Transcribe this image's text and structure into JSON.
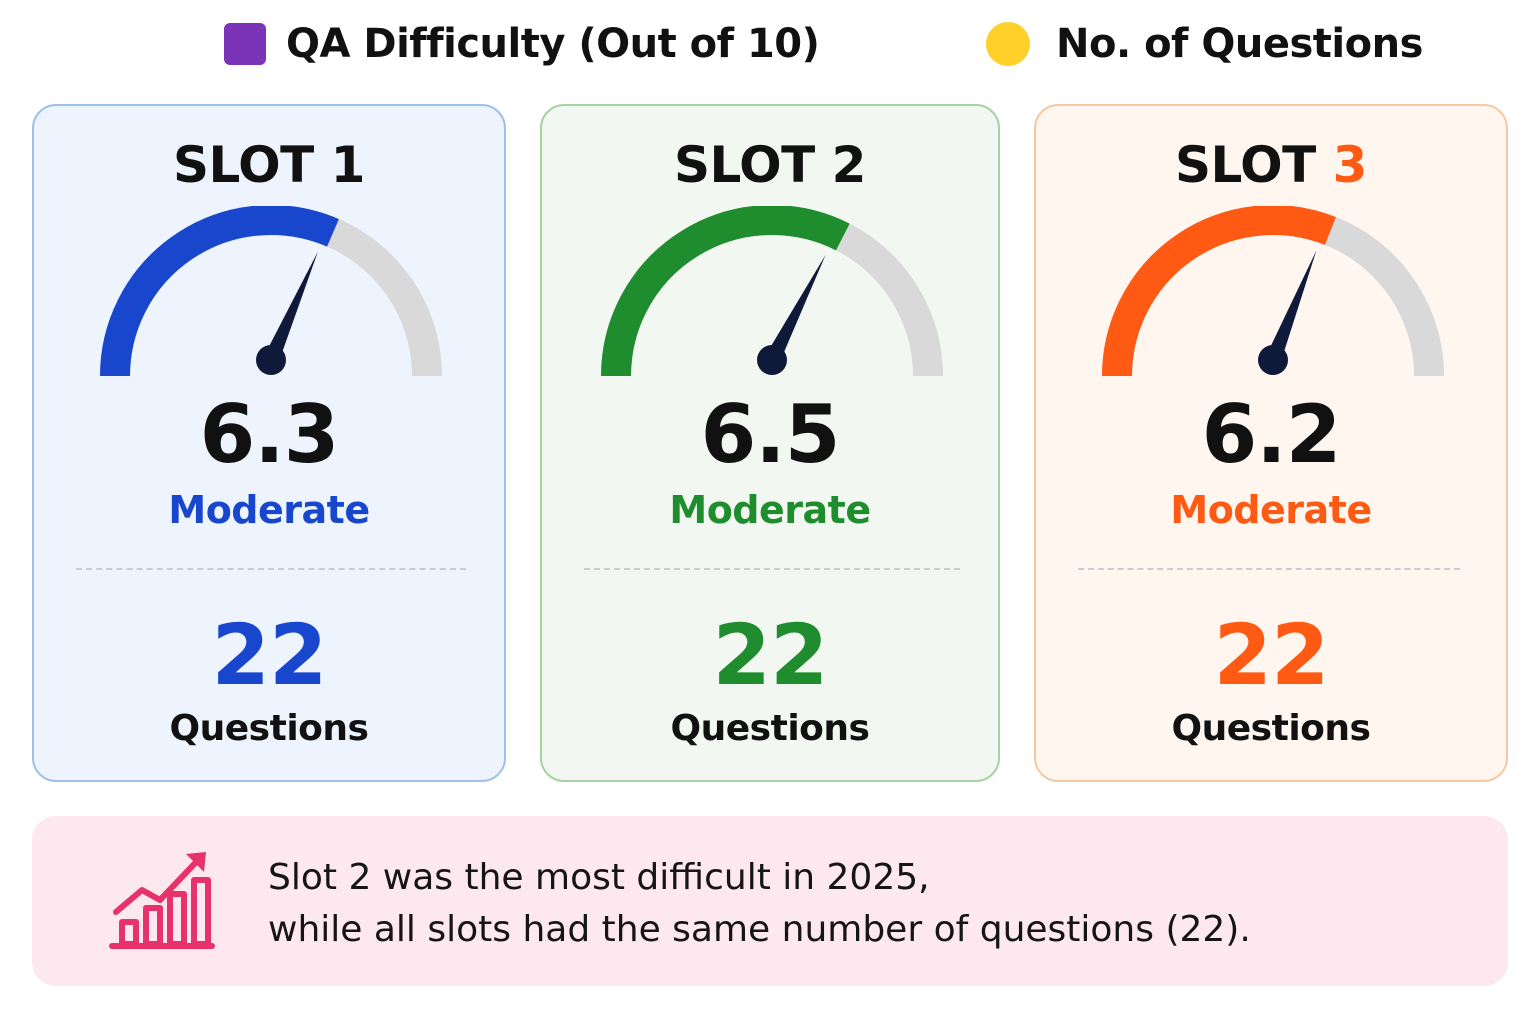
{
  "legend": [
    {
      "label": "QA Difficulty (Out of 10)",
      "color": "#7b34b8",
      "marker": "square"
    },
    {
      "label": "No. of Questions",
      "color": "#ffd02a",
      "marker": "circle"
    }
  ],
  "chart_data": {
    "type": "gauge",
    "scale": [
      0,
      10
    ],
    "series": [
      {
        "slot_label": "SLOT",
        "slot_number": "1",
        "difficulty": 6.3,
        "difficulty_text": "6.3",
        "level": "Moderate",
        "questions": 22,
        "questions_text": "22",
        "questions_label": "Questions",
        "color": "#1846cc",
        "background": "#eef4fd",
        "border": "#9ec0ea",
        "number_color": "#111111"
      },
      {
        "slot_label": "SLOT",
        "slot_number": "2",
        "difficulty": 6.5,
        "difficulty_text": "6.5",
        "level": "Moderate",
        "questions": 22,
        "questions_text": "22",
        "questions_label": "Questions",
        "color": "#1f8c2d",
        "background": "#f2f8f1",
        "border": "#a6d3a2",
        "number_color": "#111111"
      },
      {
        "slot_label": "SLOT",
        "slot_number": "3",
        "difficulty": 6.2,
        "difficulty_text": "6.2",
        "level": "Moderate",
        "questions": 22,
        "questions_text": "22",
        "questions_label": "Questions",
        "color": "#ff5a14",
        "background": "#fef6ef",
        "border": "#f6c9a5",
        "number_color": "#ff5a14"
      }
    ]
  },
  "insight": {
    "icon": "bar-chart-trend-icon",
    "icon_color": "#e8326b",
    "line1": "Slot 2 was the most difficult in 2025,",
    "line2": "while all slots had the same number of questions (22)."
  }
}
